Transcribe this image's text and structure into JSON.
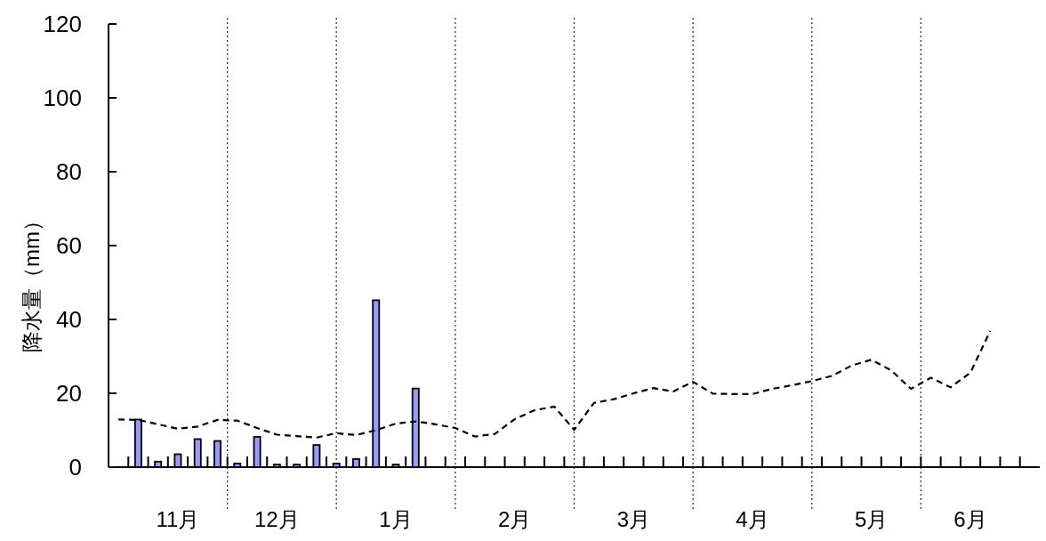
{
  "chart_data": {
    "type": "bar",
    "ylabel": "降水量（mm）",
    "categories": [
      null,
      null,
      null,
      "11月",
      null,
      null,
      null,
      null,
      "12月",
      null,
      null,
      null,
      null,
      null,
      "1月",
      null,
      null,
      null,
      null,
      null,
      "2月",
      null,
      null,
      null,
      null,
      null,
      "3月",
      null,
      null,
      null,
      null,
      null,
      "4月",
      null,
      null,
      null,
      null,
      null,
      "5月",
      null,
      null,
      null,
      null,
      "6月",
      null,
      null,
      null
    ],
    "ylim": [
      0,
      120
    ],
    "yticks": [
      0,
      20,
      40,
      60,
      80,
      100,
      120
    ],
    "grid": "x",
    "series": [
      {
        "color": "#9999ff",
        "values": [
          null,
          12.9,
          1.5,
          3.5,
          7.6,
          7.1,
          1.0,
          8.2,
          0.7,
          0.7,
          6.0,
          1.0,
          2.2,
          45.2,
          0.7,
          21.3,
          null,
          null,
          null,
          null,
          null,
          null,
          null,
          null,
          null,
          null,
          null,
          null,
          null,
          null,
          null,
          null,
          null,
          null,
          null,
          null,
          null,
          null,
          null,
          null,
          null,
          null,
          null,
          null,
          null,
          null,
          null
        ]
      },
      {
        "type": "line",
        "color": "#000000",
        "line_style": "dashed",
        "values": [
          12.9,
          12.8,
          11.6,
          10.4,
          11.0,
          12.8,
          12.6,
          10.6,
          8.8,
          8.4,
          8.0,
          9.2,
          8.7,
          10.0,
          11.8,
          12.4,
          11.6,
          10.6,
          8.3,
          9.0,
          13.0,
          15.4,
          16.4,
          10.1,
          17.4,
          18.4,
          20.0,
          21.4,
          20.5,
          23.1,
          19.9,
          19.8,
          19.8,
          21.2,
          22.2,
          23.3,
          24.7,
          27.5,
          29.1,
          26.2,
          21.2,
          24.2,
          21.6,
          25.6,
          36.9,
          null,
          null
        ]
      }
    ]
  }
}
